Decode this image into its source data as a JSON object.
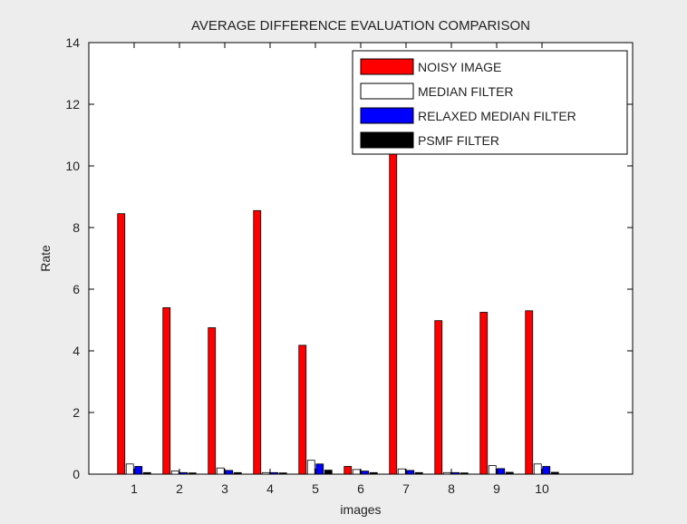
{
  "chart_data": {
    "type": "bar",
    "title": "AVERAGE DIFFERENCE EVALUATION COMPARISON",
    "xlabel": "images",
    "ylabel": "Rate",
    "ylim": [
      0,
      14
    ],
    "xlim": [
      0,
      12
    ],
    "yticks": [
      0,
      2,
      4,
      6,
      8,
      10,
      12,
      14
    ],
    "categories": [
      "1",
      "2",
      "3",
      "4",
      "5",
      "6",
      "7",
      "8",
      "9",
      "10"
    ],
    "grid": false,
    "legend_position": "top-right",
    "series": [
      {
        "name": "NOISY IMAGE",
        "color": "#ff0000",
        "values": [
          8.45,
          5.4,
          4.75,
          8.55,
          4.18,
          0.25,
          10.9,
          4.98,
          5.25,
          5.3
        ]
      },
      {
        "name": "MEDIAN FILTER",
        "color": "#ffffff",
        "values": [
          0.33,
          0.1,
          0.2,
          0.05,
          0.45,
          0.15,
          0.17,
          0.05,
          0.28,
          0.33
        ]
      },
      {
        "name": "RELAXED MEDIAN FILTER",
        "color": "#0000ff",
        "values": [
          0.25,
          0.05,
          0.12,
          0.05,
          0.33,
          0.1,
          0.12,
          0.05,
          0.18,
          0.25
        ]
      },
      {
        "name": "PSMF FILTER",
        "color": "#000000",
        "values": [
          0.05,
          0.04,
          0.05,
          0.04,
          0.13,
          0.05,
          0.05,
          0.04,
          0.06,
          0.06
        ]
      }
    ]
  }
}
